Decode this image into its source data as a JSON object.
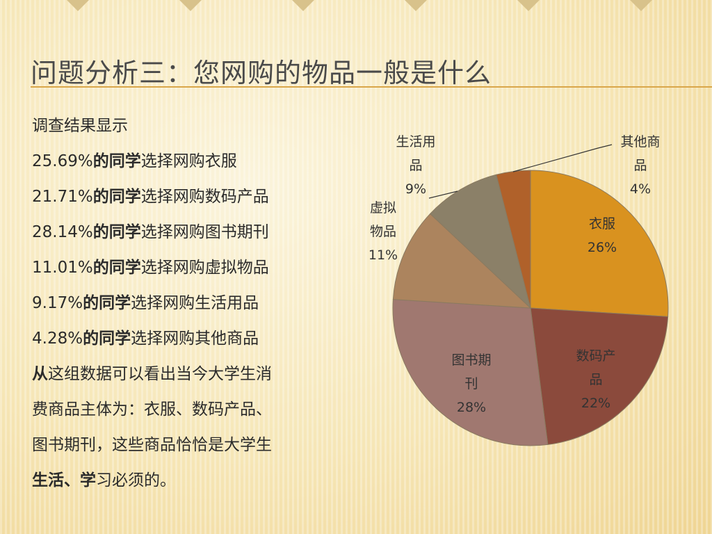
{
  "title": "问题分析三：您网购的物品一般是什么",
  "body": {
    "intro": "调查结果显示",
    "stat_lines": [
      {
        "value": "25.69%",
        "bold": "的同学",
        "rest": "选择网购衣服"
      },
      {
        "value": "21.71%",
        "bold": "的同学",
        "rest": "选择网购数码产品"
      },
      {
        "value": "28.14%",
        "bold": "的同学",
        "rest": "选择网购图书期刊"
      },
      {
        "value": "11.01%",
        "bold": "的同学",
        "rest": "选择网购虚拟物品"
      },
      {
        "value": "9.17%",
        "bold": "的同学",
        "rest": "选择网购生活用品"
      },
      {
        "value": "4.28%",
        "bold": "的同学",
        "rest": "选择网购其他商品"
      }
    ],
    "conclusion_lines": [
      {
        "bold": "从",
        "rest": "这组数据可以看出当今大学生消"
      },
      {
        "bold": "",
        "rest": "费商品主体为：衣服、数码产品、"
      },
      {
        "bold": "",
        "rest": "图书期刊，这些商品恰恰是大学生"
      },
      {
        "bold": "生活、学",
        "rest": "习必须的。"
      }
    ]
  },
  "colors": {
    "title_line": "#d9a64a"
  },
  "chart_data": {
    "type": "pie",
    "start_angle_deg": 0,
    "direction": "clockwise",
    "slices": [
      {
        "label": "衣服",
        "label_lines": [
          "衣服"
        ],
        "value": 26,
        "pct_label": "26%",
        "color": "#d9921f"
      },
      {
        "label": "数码产品",
        "label_lines": [
          "数码产",
          "品"
        ],
        "value": 22,
        "pct_label": "22%",
        "color": "#8b4a3c"
      },
      {
        "label": "图书期刊",
        "label_lines": [
          "图书期",
          "刊"
        ],
        "value": 28,
        "pct_label": "28%",
        "color": "#a07870"
      },
      {
        "label": "虚拟物品",
        "label_lines": [
          "虚拟",
          "物品"
        ],
        "value": 11,
        "pct_label": "11%",
        "color": "#ac845e"
      },
      {
        "label": "生活用品",
        "label_lines": [
          "生活用",
          "品"
        ],
        "value": 9,
        "pct_label": "9%",
        "color": "#8b8068"
      },
      {
        "label": "其他商品",
        "label_lines": [
          "其他商",
          "品"
        ],
        "value": 4,
        "pct_label": "4%",
        "color": "#b0612a"
      }
    ]
  }
}
